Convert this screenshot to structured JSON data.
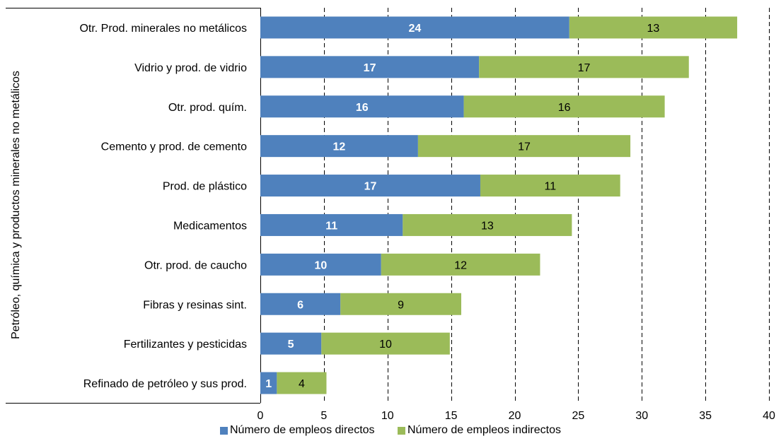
{
  "chart_data": {
    "type": "bar",
    "orientation": "horizontal",
    "stacked": true,
    "ylabel": "Petróleo, química y productos minerales no metálicos",
    "xlim": [
      0,
      40
    ],
    "xticks": [
      "0",
      "5",
      "10",
      "15",
      "20",
      "25",
      "30",
      "35",
      "40"
    ],
    "grid": "vertical dashed",
    "legend_position": "bottom",
    "categories": [
      "Otr. Prod. minerales no metálicos",
      "Vidrio y prod. de vidrio",
      "Otr. prod. quím.",
      "Cemento y prod. de cemento",
      "Prod. de plástico",
      "Medicamentos",
      "Otr. prod. de caucho",
      "Fibras y resinas sint.",
      "Fertilizantes y pesticidas",
      "Refinado de petróleo y sus prod."
    ],
    "series": [
      {
        "name": "Número de empleos directos",
        "color": "#4f81bd",
        "values": [
          24.3,
          17.2,
          16.0,
          12.4,
          17.3,
          11.2,
          9.5,
          6.3,
          4.8,
          1.3
        ],
        "labels": [
          "24",
          "17",
          "16",
          "12",
          "17",
          "11",
          "10",
          "6",
          "5",
          "1"
        ]
      },
      {
        "name": "Número de empleos indirectos",
        "color": "#9bbb59",
        "values": [
          13.2,
          16.5,
          15.8,
          16.7,
          11.0,
          13.3,
          12.5,
          9.5,
          10.1,
          3.9
        ],
        "labels": [
          "13",
          "17",
          "16",
          "17",
          "11",
          "13",
          "12",
          "9",
          "10",
          "4"
        ]
      }
    ]
  }
}
